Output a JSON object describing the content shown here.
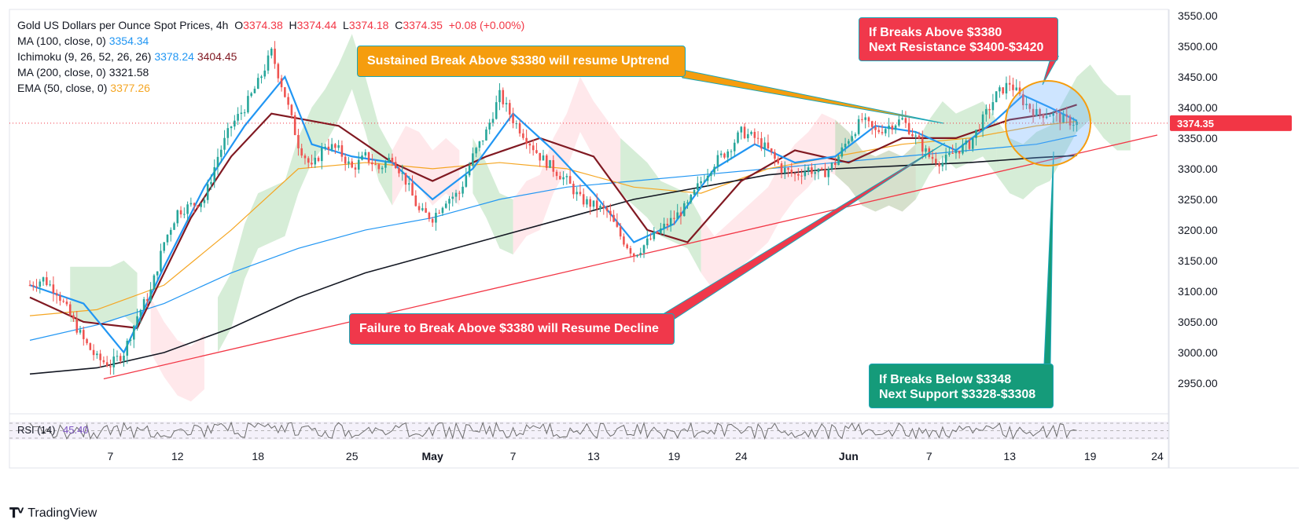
{
  "legend": {
    "title": "Gold US Dollars per Ounce Spot Prices, 4h",
    "ohlc": {
      "o": "3374.38",
      "h": "3374.44",
      "l": "3374.18",
      "c": "3374.35",
      "chg": "+0.08 (+0.00%)"
    },
    "ma100": {
      "label": "MA (100, close, 0)",
      "value": "3354.34"
    },
    "ichimoku": {
      "label": "Ichimoku (9, 26, 52, 26, 26)",
      "v1": "3378.24",
      "v2": "3404.45"
    },
    "ma200": {
      "label": "MA (200, close, 0)",
      "value": "3321.58"
    },
    "ema50": {
      "label": "EMA (50, close, 0)",
      "value": "3377.26"
    }
  },
  "callouts": {
    "uptrend": "Sustained Break Above $3380 will resume Uptrend",
    "resistance_l1": "If Breaks Above $3380",
    "resistance_l2": "Next Resistance $3400-$3420",
    "decline": "Failure to Break Above $3380 will Resume Decline",
    "support_l1": "If Breaks Below $3348",
    "support_l2": "Next Support $3328-$3308"
  },
  "rsi_label": "RSI (14)",
  "rsi_value": "45.40",
  "brand": "TradingView",
  "colors": {
    "up": "#26a69a",
    "down": "#ef5350",
    "ma100": "#2196f3",
    "ema50": "#f5a623",
    "ma200": "#131722",
    "kijun": "#801922",
    "tenkan": "#2196f3",
    "trend": "#f23645",
    "cloud_green": "#a5d6a7",
    "cloud_red": "#ffcdd2",
    "price_label": "#f23645"
  },
  "chart_data": {
    "type": "candlestick",
    "title": "Gold US Dollars per Ounce Spot Prices, 4h",
    "current_price": "3374.35",
    "ylim": [
      2900,
      3560
    ],
    "y_ticks": [
      "3550.00",
      "3500.00",
      "3450.00",
      "3400.00",
      "3350.00",
      "3300.00",
      "3250.00",
      "3200.00",
      "3150.00",
      "3100.00",
      "3050.00",
      "3000.00",
      "2950.00"
    ],
    "x_range": [
      0,
      84
    ],
    "x_ticks": [
      {
        "x": 6,
        "label": "7"
      },
      {
        "x": 11,
        "label": "12"
      },
      {
        "x": 17,
        "label": "18"
      },
      {
        "x": 24,
        "label": "25"
      },
      {
        "x": 30,
        "label": "May"
      },
      {
        "x": 36,
        "label": "7"
      },
      {
        "x": 42,
        "label": "13"
      },
      {
        "x": 48,
        "label": "19"
      },
      {
        "x": 53,
        "label": "24"
      },
      {
        "x": 61,
        "label": "Jun"
      },
      {
        "x": 67,
        "label": "7"
      },
      {
        "x": 73,
        "label": "13"
      },
      {
        "x": 79,
        "label": "19"
      },
      {
        "x": 84,
        "label": "24"
      }
    ],
    "price_path": [
      [
        0,
        3110
      ],
      [
        1,
        3120
      ],
      [
        2,
        3100
      ],
      [
        3,
        3060
      ],
      [
        4,
        3020
      ],
      [
        5,
        2990
      ],
      [
        6,
        2980
      ],
      [
        7,
        3000
      ],
      [
        8,
        3060
      ],
      [
        9,
        3100
      ],
      [
        10,
        3180
      ],
      [
        11,
        3230
      ],
      [
        12,
        3240
      ],
      [
        13,
        3250
      ],
      [
        14,
        3320
      ],
      [
        15,
        3370
      ],
      [
        16,
        3400
      ],
      [
        17,
        3440
      ],
      [
        18,
        3490
      ],
      [
        19,
        3420
      ],
      [
        20,
        3340
      ],
      [
        21,
        3300
      ],
      [
        22,
        3340
      ],
      [
        23,
        3330
      ],
      [
        24,
        3300
      ],
      [
        25,
        3320
      ],
      [
        26,
        3300
      ],
      [
        27,
        3320
      ],
      [
        28,
        3280
      ],
      [
        29,
        3230
      ],
      [
        30,
        3220
      ],
      [
        31,
        3250
      ],
      [
        32,
        3260
      ],
      [
        33,
        3320
      ],
      [
        34,
        3360
      ],
      [
        35,
        3420
      ],
      [
        36,
        3380
      ],
      [
        37,
        3350
      ],
      [
        38,
        3320
      ],
      [
        39,
        3300
      ],
      [
        40,
        3280
      ],
      [
        41,
        3250
      ],
      [
        42,
        3240
      ],
      [
        43,
        3230
      ],
      [
        44,
        3190
      ],
      [
        45,
        3160
      ],
      [
        46,
        3180
      ],
      [
        47,
        3200
      ],
      [
        48,
        3220
      ],
      [
        49,
        3240
      ],
      [
        50,
        3280
      ],
      [
        51,
        3310
      ],
      [
        52,
        3330
      ],
      [
        53,
        3360
      ],
      [
        54,
        3350
      ],
      [
        55,
        3330
      ],
      [
        56,
        3300
      ],
      [
        57,
        3290
      ],
      [
        58,
        3300
      ],
      [
        59,
        3290
      ],
      [
        60,
        3310
      ],
      [
        61,
        3350
      ],
      [
        62,
        3380
      ],
      [
        63,
        3360
      ],
      [
        64,
        3370
      ],
      [
        65,
        3380
      ],
      [
        66,
        3350
      ],
      [
        67,
        3320
      ],
      [
        68,
        3310
      ],
      [
        69,
        3330
      ],
      [
        70,
        3340
      ],
      [
        71,
        3380
      ],
      [
        72,
        3420
      ],
      [
        73,
        3440
      ],
      [
        74,
        3410
      ],
      [
        75,
        3390
      ],
      [
        76,
        3390
      ],
      [
        77,
        3380
      ],
      [
        78,
        3374.35
      ]
    ],
    "series": [
      {
        "name": "MA (100, close, 0)",
        "last": 3354.34,
        "values": [
          [
            0,
            3020
          ],
          [
            5,
            3045
          ],
          [
            10,
            3080
          ],
          [
            15,
            3130
          ],
          [
            20,
            3170
          ],
          [
            25,
            3200
          ],
          [
            30,
            3220
          ],
          [
            35,
            3250
          ],
          [
            40,
            3270
          ],
          [
            45,
            3280
          ],
          [
            50,
            3290
          ],
          [
            55,
            3300
          ],
          [
            60,
            3310
          ],
          [
            65,
            3320
          ],
          [
            70,
            3330
          ],
          [
            75,
            3340
          ],
          [
            78,
            3354.34
          ]
        ]
      },
      {
        "name": "EMA (50, close, 0)",
        "last": 3377.26,
        "values": [
          [
            0,
            3060
          ],
          [
            5,
            3070
          ],
          [
            10,
            3110
          ],
          [
            15,
            3200
          ],
          [
            20,
            3300
          ],
          [
            25,
            3310
          ],
          [
            30,
            3300
          ],
          [
            35,
            3310
          ],
          [
            40,
            3300
          ],
          [
            45,
            3270
          ],
          [
            50,
            3260
          ],
          [
            55,
            3300
          ],
          [
            60,
            3320
          ],
          [
            65,
            3340
          ],
          [
            70,
            3350
          ],
          [
            75,
            3370
          ],
          [
            78,
            3377.26
          ]
        ]
      },
      {
        "name": "MA (200, close, 0)",
        "last": 3321.58,
        "values": [
          [
            0,
            2965
          ],
          [
            5,
            2975
          ],
          [
            10,
            3000
          ],
          [
            15,
            3040
          ],
          [
            20,
            3090
          ],
          [
            25,
            3130
          ],
          [
            30,
            3160
          ],
          [
            35,
            3190
          ],
          [
            40,
            3220
          ],
          [
            45,
            3250
          ],
          [
            50,
            3270
          ],
          [
            55,
            3290
          ],
          [
            60,
            3300
          ],
          [
            65,
            3305
          ],
          [
            70,
            3310
          ],
          [
            75,
            3318
          ],
          [
            78,
            3321.58
          ]
        ]
      },
      {
        "name": "Ichimoku Kijun",
        "last": 3404.45,
        "values": [
          [
            0,
            3090
          ],
          [
            4,
            3050
          ],
          [
            8,
            3040
          ],
          [
            12,
            3220
          ],
          [
            15,
            3320
          ],
          [
            18,
            3390
          ],
          [
            23,
            3370
          ],
          [
            27,
            3310
          ],
          [
            30,
            3280
          ],
          [
            34,
            3320
          ],
          [
            38,
            3350
          ],
          [
            42,
            3320
          ],
          [
            46,
            3200
          ],
          [
            49,
            3180
          ],
          [
            53,
            3280
          ],
          [
            57,
            3330
          ],
          [
            61,
            3310
          ],
          [
            65,
            3350
          ],
          [
            69,
            3350
          ],
          [
            73,
            3380
          ],
          [
            76,
            3390
          ],
          [
            78,
            3404.45
          ]
        ]
      },
      {
        "name": "Ichimoku Tenkan",
        "last": 3378.24,
        "values": [
          [
            0,
            3110
          ],
          [
            4,
            3080
          ],
          [
            7,
            3000
          ],
          [
            10,
            3140
          ],
          [
            13,
            3270
          ],
          [
            16,
            3370
          ],
          [
            19,
            3450
          ],
          [
            21,
            3340
          ],
          [
            24,
            3320
          ],
          [
            27,
            3310
          ],
          [
            30,
            3250
          ],
          [
            33,
            3300
          ],
          [
            36,
            3390
          ],
          [
            39,
            3330
          ],
          [
            42,
            3260
          ],
          [
            45,
            3180
          ],
          [
            48,
            3210
          ],
          [
            51,
            3300
          ],
          [
            54,
            3340
          ],
          [
            57,
            3310
          ],
          [
            60,
            3320
          ],
          [
            63,
            3370
          ],
          [
            66,
            3360
          ],
          [
            69,
            3330
          ],
          [
            72,
            3380
          ],
          [
            74,
            3420
          ],
          [
            76,
            3400
          ],
          [
            78,
            3378.24
          ]
        ]
      }
    ],
    "trendline": {
      "from": [
        5.5,
        2957
      ],
      "to": [
        84,
        3355
      ]
    },
    "rsi": {
      "name": "RSI (14)",
      "value": 45.4,
      "range": [
        0,
        100
      ],
      "levels": [
        30,
        50,
        70
      ]
    }
  }
}
